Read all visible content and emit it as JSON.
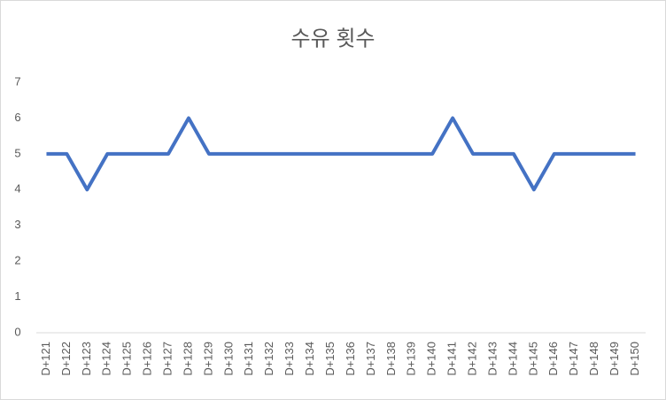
{
  "chart_data": {
    "type": "line",
    "title": "수유 횟수",
    "categories": [
      "D+121",
      "D+122",
      "D+123",
      "D+124",
      "D+125",
      "D+126",
      "D+127",
      "D+128",
      "D+129",
      "D+130",
      "D+131",
      "D+132",
      "D+133",
      "D+134",
      "D+135",
      "D+136",
      "D+137",
      "D+138",
      "D+139",
      "D+140",
      "D+141",
      "D+142",
      "D+143",
      "D+144",
      "D+145",
      "D+146",
      "D+147",
      "D+148",
      "D+149",
      "D+150"
    ],
    "values": [
      5,
      5,
      4,
      5,
      5,
      5,
      5,
      6,
      5,
      5,
      5,
      5,
      5,
      5,
      5,
      5,
      5,
      5,
      5,
      5,
      6,
      5,
      5,
      5,
      4,
      5,
      5,
      5,
      5,
      5
    ],
    "color": "#4472c4",
    "ylim": [
      0,
      7
    ],
    "yticks": [
      0,
      1,
      2,
      3,
      4,
      5,
      6,
      7
    ],
    "grid": false
  }
}
